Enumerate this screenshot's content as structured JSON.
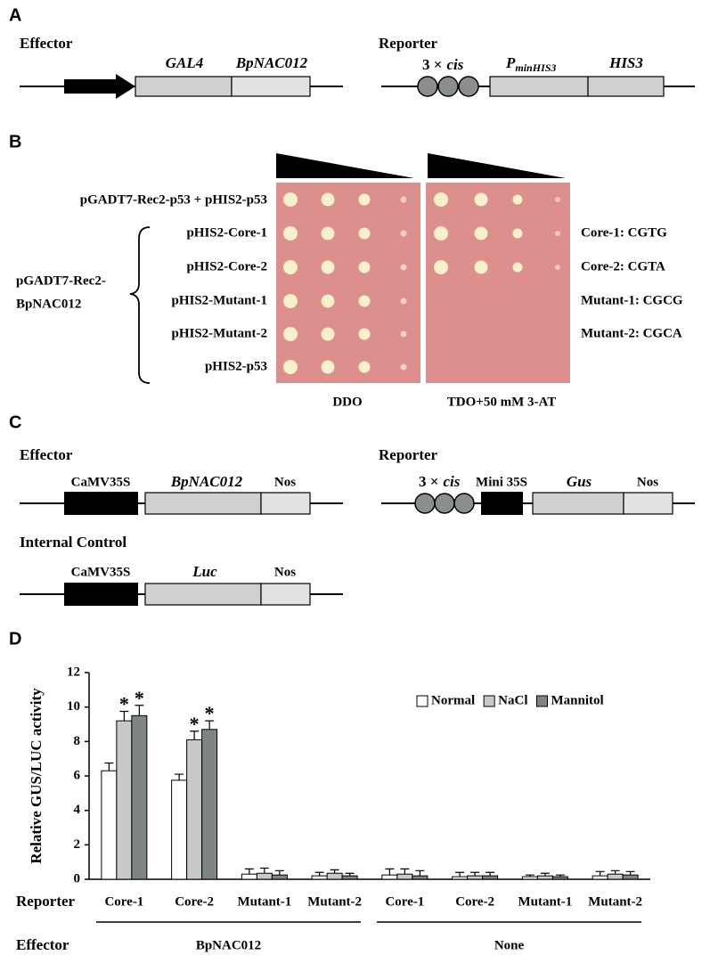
{
  "panel_a": {
    "letter": "A",
    "effector": {
      "title": "Effector",
      "parts": [
        "GAL4",
        "BpNAC012"
      ]
    },
    "reporter": {
      "title": "Reporter",
      "cis": [
        "3 ×",
        "cis"
      ],
      "promoter": [
        "P",
        "minHIS3"
      ],
      "gene": "HIS3"
    }
  },
  "panel_b": {
    "letter": "B",
    "control_row": "pGADT7-Rec2-p53 + pHIS2-p53",
    "effector_group": [
      "pGADT7-Rec2-",
      "BpNAC012"
    ],
    "rows": [
      "pHIS2-Core-1",
      "pHIS2-Core-2",
      "pHIS2-Mutant-1",
      "pHIS2-Mutant-2",
      "pHIS2-p53"
    ],
    "motifs": [
      "Core-1: CGTG",
      "Core-2: CGTA",
      "Mutant-1: CGCG",
      "Mutant-2: CGCA"
    ],
    "media": [
      "DDO",
      "TDO+50 mM 3-AT"
    ]
  },
  "panel_c": {
    "letter": "C",
    "effector": {
      "title": "Effector",
      "parts": [
        "CaMV35S",
        "BpNAC012",
        "Nos"
      ]
    },
    "reporter": {
      "title": "Reporter",
      "cis": [
        "3 ×",
        "cis"
      ],
      "parts": [
        "Mini 35S",
        "Gus",
        "Nos"
      ]
    },
    "control": {
      "title": "Internal Control",
      "parts": [
        "CaMV35S",
        "Luc",
        "Nos"
      ]
    }
  },
  "chart_data": {
    "type": "bar",
    "letter": "D",
    "y_label": "Relative GUS/LUC activity",
    "categories": [
      "Core-1",
      "Core-2",
      "Mutant-1",
      "Mutant-2",
      "Core-1",
      "Core-2",
      "Mutant-1",
      "Mutant-2"
    ],
    "row_labels": [
      "Reporter",
      "Effector"
    ],
    "effector_groups": [
      "BpNAC012",
      "None"
    ],
    "series": [
      {
        "name": "Normal",
        "color": "#ffffff",
        "values": [
          6.3,
          5.75,
          0.3,
          0.2,
          0.25,
          0.15,
          0.15,
          0.2
        ],
        "errors": [
          0.45,
          0.35,
          0.3,
          0.2,
          0.35,
          0.25,
          0.1,
          0.25
        ]
      },
      {
        "name": "NaCl",
        "color": "#c8cac9",
        "values": [
          9.2,
          8.1,
          0.35,
          0.35,
          0.3,
          0.2,
          0.2,
          0.3
        ],
        "errors": [
          0.55,
          0.5,
          0.3,
          0.2,
          0.3,
          0.2,
          0.15,
          0.2
        ],
        "significance": [
          "*",
          "*",
          null,
          null,
          null,
          null,
          null,
          null
        ]
      },
      {
        "name": "Mannitol",
        "color": "#7e8583",
        "values": [
          9.5,
          8.7,
          0.25,
          0.2,
          0.2,
          0.2,
          0.15,
          0.25
        ],
        "errors": [
          0.6,
          0.5,
          0.25,
          0.15,
          0.3,
          0.2,
          0.1,
          0.2
        ],
        "significance": [
          "*",
          "*",
          null,
          null,
          null,
          null,
          null,
          null
        ]
      }
    ],
    "ylim": [
      0,
      12
    ],
    "yticks": [
      0,
      2,
      4,
      6,
      8,
      10,
      12
    ],
    "legend": "upper right"
  }
}
